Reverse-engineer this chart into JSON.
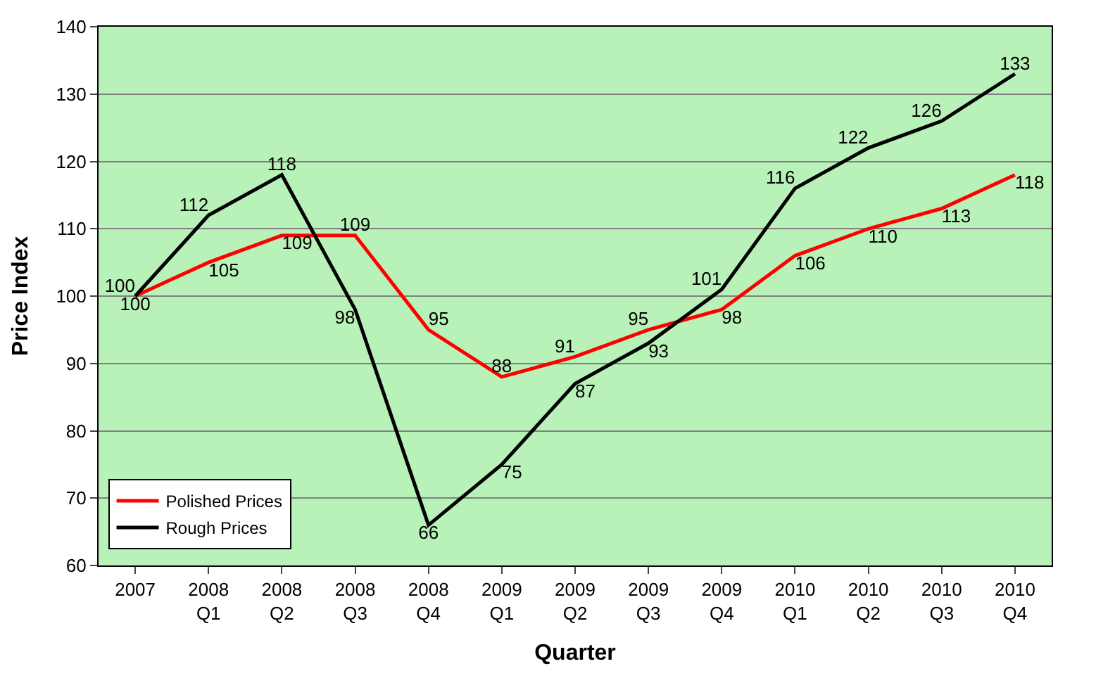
{
  "chart_data": {
    "type": "line",
    "xlabel": "Quarter",
    "ylabel": "Price Index",
    "categories": [
      "2007",
      "2008 Q1",
      "2008 Q2",
      "2008 Q3",
      "2008 Q4",
      "2009 Q1",
      "2009 Q2",
      "2009 Q3",
      "2009 Q4",
      "2010 Q1",
      "2010 Q2",
      "2010 Q3",
      "2010 Q4"
    ],
    "series": [
      {
        "name": "Polished Prices",
        "color": "#ff0000",
        "values": [
          100,
          105,
          109,
          109,
          95,
          88,
          91,
          95,
          98,
          106,
          110,
          113,
          118
        ]
      },
      {
        "name": "Rough Prices",
        "color": "#000000",
        "values": [
          100,
          112,
          118,
          98,
          66,
          75,
          87,
          93,
          101,
          116,
          122,
          126,
          133
        ]
      }
    ],
    "ylim": [
      60,
      140
    ],
    "yticks": [
      60,
      70,
      80,
      90,
      100,
      110,
      120,
      130,
      140
    ],
    "grid": "y",
    "legend": "bottom left",
    "data_labels": true,
    "marker": "none",
    "line_style": "solid"
  }
}
